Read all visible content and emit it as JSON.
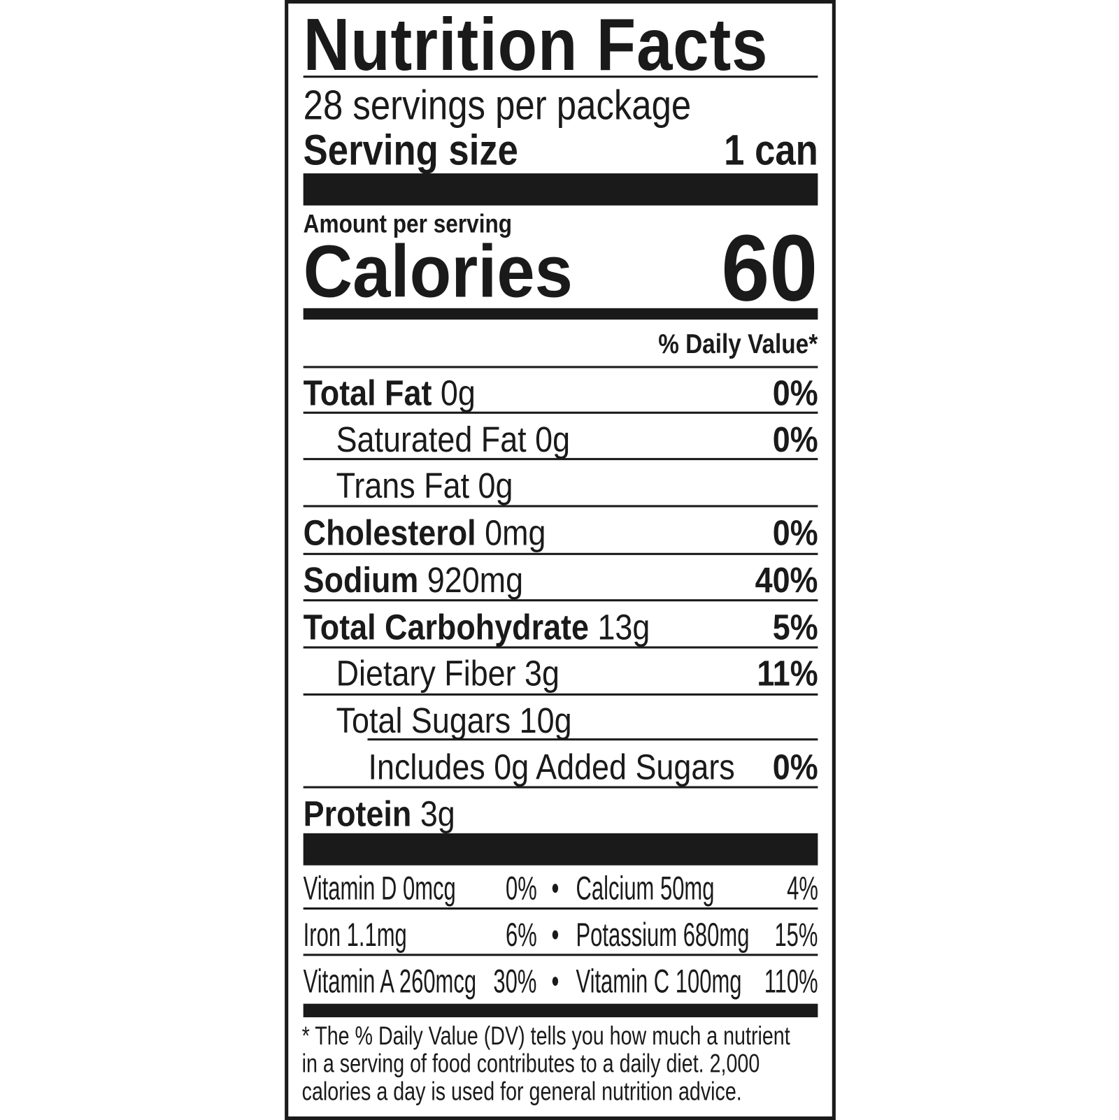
{
  "title": "Nutrition Facts",
  "servings_per_package": "28 servings per package",
  "serving_size": {
    "label": "Serving size",
    "value": "1 can"
  },
  "amount_per_serving": "Amount per serving",
  "calories": {
    "label": "Calories",
    "value": "60"
  },
  "daily_value_header": "% Daily Value*",
  "nutrients": [
    {
      "name": "Total Fat",
      "amount": "0g",
      "dv": "0%"
    },
    {
      "name": "Saturated Fat 0g",
      "amount": "",
      "dv": "0%"
    },
    {
      "name": "Trans Fat 0g",
      "amount": "",
      "dv": ""
    },
    {
      "name": "Cholesterol",
      "amount": "0mg",
      "dv": "0%"
    },
    {
      "name": "Sodium",
      "amount": "920mg",
      "dv": "40%"
    },
    {
      "name": "Total Carbohydrate",
      "amount": "13g",
      "dv": "5%"
    },
    {
      "name": "Dietary Fiber 3g",
      "amount": "",
      "dv": "11%"
    },
    {
      "name": "Total Sugars 10g",
      "amount": "",
      "dv": ""
    },
    {
      "name": "Includes 0g Added Sugars",
      "amount": "",
      "dv": "0%"
    },
    {
      "name": "Protein",
      "amount": "3g",
      "dv": ""
    }
  ],
  "vitamins": [
    {
      "left_name": "Vitamin D 0mcg",
      "left_dv": "0%",
      "right_name": "Calcium 50mg",
      "right_dv": "4%"
    },
    {
      "left_name": "Iron 1.1mg",
      "left_dv": "6%",
      "right_name": "Potassium 680mg",
      "right_dv": "15%"
    },
    {
      "left_name": "Vitamin A 260mcg",
      "left_dv": "30%",
      "right_name": "Vitamin C 100mg",
      "right_dv": "110%"
    }
  ],
  "bullet": "•",
  "footnote": [
    "* The % Daily Value (DV) tells you how much a nutrient",
    "in a serving of food contributes to a daily diet. 2,000",
    "calories a day is used for general nutrition advice."
  ]
}
